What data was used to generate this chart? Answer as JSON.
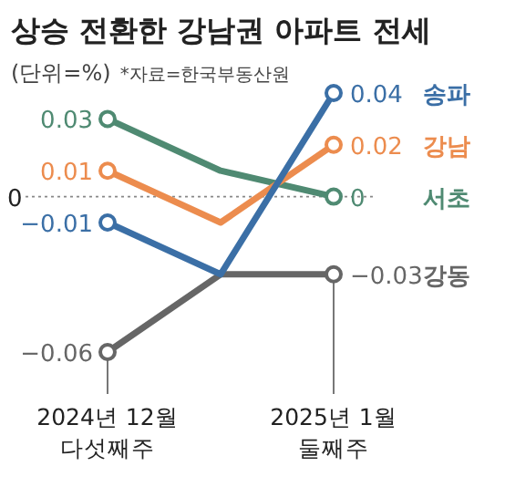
{
  "chart_data": {
    "type": "line",
    "title": "상승 전환한 강남권 아파트 전세",
    "subtitle": "(단위=%)",
    "annotations": [
      "*자료=한국부동산원"
    ],
    "categories": [
      "2024년 12월\n다섯째주",
      null,
      "2025년 1월\n둘째주"
    ],
    "marker": "circle",
    "series": [
      {
        "name": "송파",
        "color": "#3b6fa6",
        "values": [
          -0.01,
          -0.03,
          0.04
        ],
        "value_labels": [
          "−0.01",
          null,
          "0.04"
        ]
      },
      {
        "name": "강남",
        "color": "#ec8c4e",
        "values": [
          0.01,
          -0.01,
          0.02
        ],
        "value_labels": [
          "0.01",
          null,
          "0.02"
        ]
      },
      {
        "name": "서초",
        "color": "#4f8a72",
        "values": [
          0.03,
          0.01,
          0
        ],
        "value_labels": [
          "0.03",
          null,
          "0"
        ]
      },
      {
        "name": "강동",
        "color": "#666666",
        "values": [
          -0.06,
          -0.03,
          -0.03
        ],
        "value_labels": [
          "−0.06",
          null,
          "−0.03"
        ]
      }
    ],
    "ref_lines": [
      {
        "axis": "y",
        "value": 0,
        "label": "0",
        "line_style": "dotted",
        "color": "#888888"
      }
    ]
  }
}
